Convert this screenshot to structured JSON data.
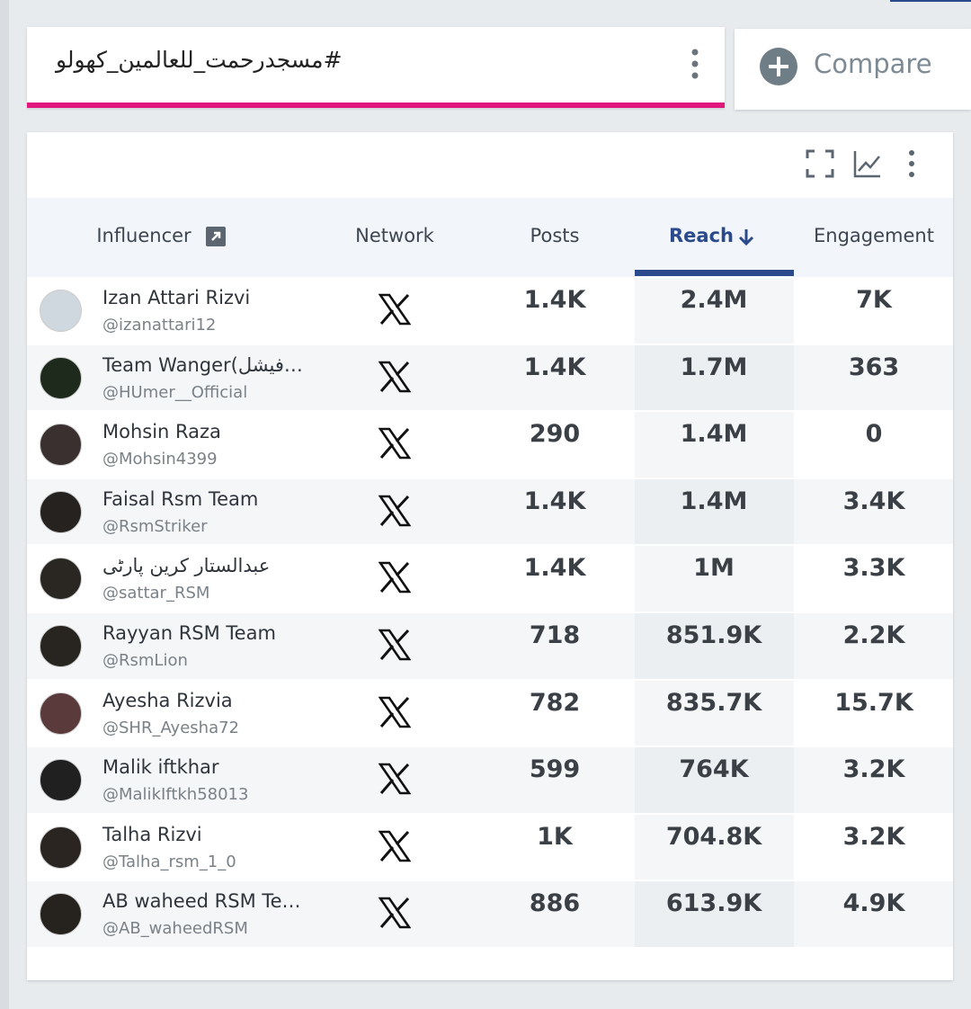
{
  "search": {
    "hashtag": "#مسجدرحمت_للعالمین_کھولو"
  },
  "compare": {
    "label": "Compare"
  },
  "table": {
    "headers": {
      "influencer": "Influencer",
      "network": "Network",
      "posts": "Posts",
      "reach": "Reach",
      "engagement": "Engagement"
    },
    "rows": [
      {
        "name": "Izan Attari Rizvi",
        "handle": "@izanattari12",
        "posts": "1.4K",
        "reach": "2.4M",
        "engagement": "7K"
      },
      {
        "name": "Team Wanger(فیشل…",
        "handle": "@HUmer__Official",
        "posts": "1.4K",
        "reach": "1.7M",
        "engagement": "363"
      },
      {
        "name": "Mohsin Raza",
        "handle": "@Mohsin4399",
        "posts": "290",
        "reach": "1.4M",
        "engagement": "0"
      },
      {
        "name": "Faisal Rsm Team",
        "handle": "@RsmStriker",
        "posts": "1.4K",
        "reach": "1.4M",
        "engagement": "3.4K"
      },
      {
        "name": "عبدالستار کرین پارٹی",
        "handle": "@sattar_RSM",
        "posts": "1.4K",
        "reach": "1M",
        "engagement": "3.3K"
      },
      {
        "name": "Rayyan RSM Team",
        "handle": "@RsmLion",
        "posts": "718",
        "reach": "851.9K",
        "engagement": "2.2K"
      },
      {
        "name": "Ayesha Rizvia",
        "handle": "@SHR_Ayesha72",
        "posts": "782",
        "reach": "835.7K",
        "engagement": "15.7K"
      },
      {
        "name": "Malik iftkhar",
        "handle": "@MalikIftkh58013",
        "posts": "599",
        "reach": "764K",
        "engagement": "3.2K"
      },
      {
        "name": "Talha Rizvi",
        "handle": "@Talha_rsm_1_0",
        "posts": "1K",
        "reach": "704.8K",
        "engagement": "3.2K"
      },
      {
        "name": "AB waheed RSM Te…",
        "handle": "@AB_waheedRSM",
        "posts": "886",
        "reach": "613.9K",
        "engagement": "4.9K"
      }
    ]
  }
}
